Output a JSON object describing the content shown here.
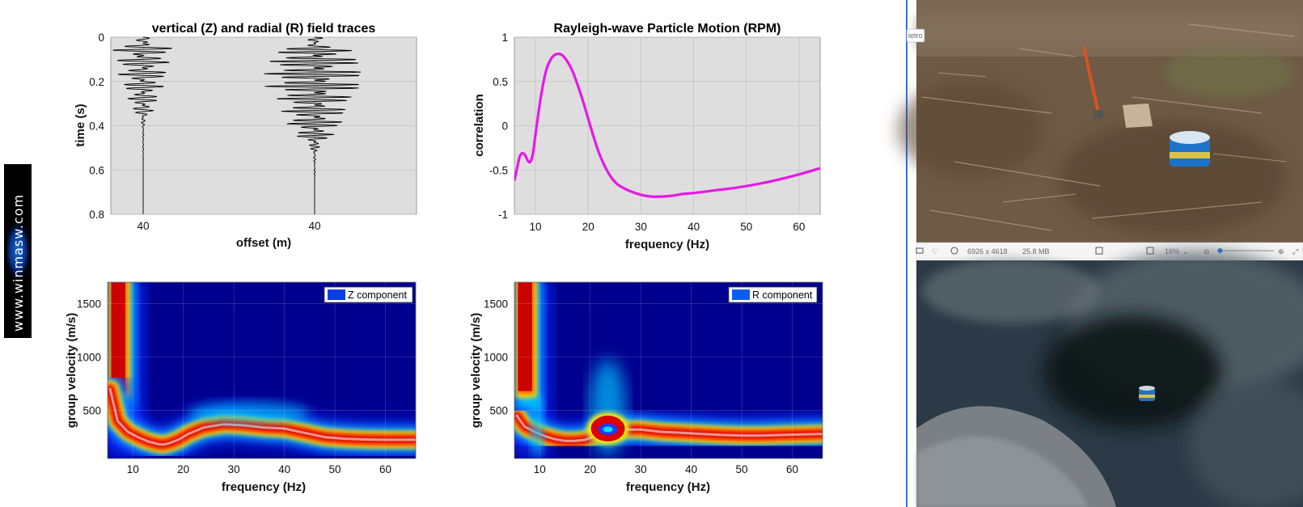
{
  "watermark": "www.winmasw.com",
  "photo_viewer": {
    "tooltip": "ietro",
    "dimensions": "6926 x 4618",
    "file_size": "25.8 MB",
    "zoom": "16%",
    "zoom_level_fraction": 0.05
  },
  "colors": {
    "plot_bg": "#dedede",
    "rpm_line": "#e619e6",
    "trace": "#000000",
    "spectrogram_low": "#00008f",
    "spectrogram_high": "#b00000"
  },
  "chart_data": [
    {
      "id": "traces",
      "type": "line",
      "title": "vertical (Z) and radial (R) field traces",
      "xlabel": "offset (m)",
      "ylabel": "time (s)",
      "ylim": [
        0,
        0.8
      ],
      "y_reversed": true,
      "xticks": [
        "40",
        "40"
      ],
      "yticks": [
        0,
        0.2,
        0.4,
        0.6,
        0.8
      ],
      "yticklabels": [
        "0",
        "0.2",
        "0.4",
        "0.6",
        "0.8"
      ],
      "grid": true,
      "series": [
        {
          "component": "Z",
          "peak_times": [
            0.05,
            0.1,
            0.16,
            0.22,
            0.3
          ],
          "end_time": 0.55
        },
        {
          "component": "R",
          "peak_times": [
            0.08,
            0.14,
            0.2,
            0.26,
            0.34,
            0.42
          ],
          "end_time": 0.65
        }
      ]
    },
    {
      "id": "rpm",
      "type": "line",
      "title": "Rayleigh-wave Particle Motion (RPM)",
      "xlabel": "frequency (Hz)",
      "ylabel": "correlation",
      "xlim": [
        6,
        64
      ],
      "ylim": [
        -1,
        1
      ],
      "xticks": [
        10,
        20,
        30,
        40,
        50,
        60
      ],
      "xticklabels": [
        "10",
        "20",
        "30",
        "40",
        "50",
        "60"
      ],
      "yticks": [
        -1,
        -0.5,
        0,
        0.5,
        1
      ],
      "yticklabels": [
        "-1",
        "-0.5",
        "0",
        "0.5",
        "1"
      ],
      "grid": true,
      "x": [
        6,
        6.5,
        7,
        7.5,
        8,
        8.5,
        9,
        9.5,
        10,
        11,
        12,
        13,
        14,
        15,
        16,
        17,
        18,
        19,
        20,
        21,
        22,
        23,
        24,
        25,
        26,
        28,
        30,
        32,
        34,
        36,
        38,
        40,
        44,
        48,
        52,
        56,
        60,
        64
      ],
      "y": [
        -0.62,
        -0.48,
        -0.35,
        -0.31,
        -0.33,
        -0.39,
        -0.41,
        -0.32,
        -0.1,
        0.32,
        0.62,
        0.76,
        0.81,
        0.8,
        0.73,
        0.62,
        0.46,
        0.28,
        0.08,
        -0.12,
        -0.3,
        -0.44,
        -0.55,
        -0.63,
        -0.68,
        -0.74,
        -0.78,
        -0.8,
        -0.8,
        -0.79,
        -0.77,
        -0.76,
        -0.73,
        -0.7,
        -0.66,
        -0.61,
        -0.55,
        -0.48
      ]
    },
    {
      "id": "z_spectrogram",
      "type": "heatmap",
      "legend": "Z component",
      "legend_position": "top-right",
      "xlabel": "frequency (Hz)",
      "ylabel": "group velocity (m/s)",
      "xlim": [
        5,
        66
      ],
      "ylim": [
        50,
        1700
      ],
      "xticks": [
        10,
        20,
        30,
        40,
        50,
        60
      ],
      "xticklabels": [
        "10",
        "20",
        "30",
        "40",
        "50",
        "60"
      ],
      "yticks": [
        500,
        1000,
        1500
      ],
      "yticklabels": [
        "500",
        "1000",
        "1500"
      ],
      "grid": true,
      "ridge": {
        "x": [
          5.5,
          7,
          9,
          11,
          13,
          15,
          16,
          17,
          19,
          21,
          24,
          28,
          32,
          36,
          40,
          44,
          48,
          52,
          56,
          60,
          66
        ],
        "y": [
          700,
          400,
          300,
          250,
          210,
          185,
          180,
          190,
          225,
          280,
          340,
          370,
          360,
          340,
          330,
          290,
          250,
          235,
          228,
          225,
          225
        ]
      }
    },
    {
      "id": "r_spectrogram",
      "type": "heatmap",
      "legend": "R component",
      "legend_position": "top-right",
      "xlabel": "frequency (Hz)",
      "ylabel": "group velocity (m/s)",
      "xlim": [
        5,
        66
      ],
      "ylim": [
        50,
        1700
      ],
      "xticks": [
        10,
        20,
        30,
        40,
        50,
        60
      ],
      "xticklabels": [
        "10",
        "20",
        "30",
        "40",
        "50",
        "60"
      ],
      "yticks": [
        500,
        1000,
        1500
      ],
      "yticklabels": [
        "500",
        "1000",
        "1500"
      ],
      "grid": true,
      "ridge": {
        "x": [
          5.5,
          7,
          9,
          11,
          13,
          15,
          17,
          19,
          21,
          23,
          25,
          27,
          30,
          34,
          38,
          42,
          46,
          50,
          54,
          58,
          62,
          66
        ],
        "y": [
          450,
          350,
          300,
          260,
          230,
          215,
          215,
          225,
          260,
          300,
          310,
          320,
          320,
          300,
          290,
          280,
          270,
          265,
          265,
          270,
          275,
          280
        ]
      }
    }
  ]
}
